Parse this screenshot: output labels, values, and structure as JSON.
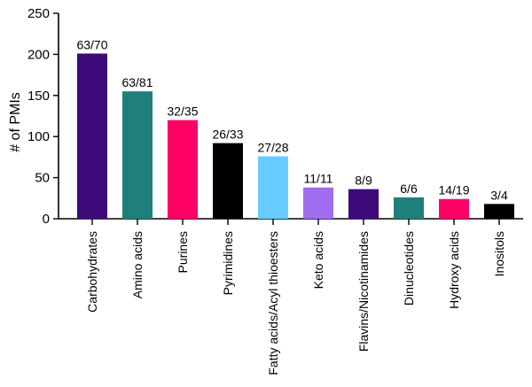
{
  "chart_data": {
    "type": "bar",
    "ylabel": "# of PMIs",
    "xlabel": "",
    "ylim": [
      0,
      250
    ],
    "yticks": [
      0,
      50,
      100,
      150,
      200,
      250
    ],
    "categories": [
      "Carbohydrates",
      "Amino acids",
      "Purines",
      "Pyrimidines",
      "Fatty acids/Acyl thioesters",
      "Keto acids",
      "Flavins/Nicotinamides",
      "Dinucleotides",
      "Hydroxy acids",
      "Inositols"
    ],
    "values": [
      201,
      155,
      120,
      92,
      76,
      38,
      36,
      26,
      24,
      18
    ],
    "data_labels": [
      "63/70",
      "63/81",
      "32/35",
      "26/33",
      "27/28",
      "11/11",
      "8/9",
      "6/6",
      "14/19",
      "3/4"
    ],
    "colors": [
      "#3d0a7a",
      "#1f7f7a",
      "#ff0066",
      "#000000",
      "#66ccff",
      "#a06cf0",
      "#3d0a7a",
      "#1f7f7a",
      "#ff0066",
      "#000000"
    ],
    "grid": false,
    "legend": "none"
  }
}
